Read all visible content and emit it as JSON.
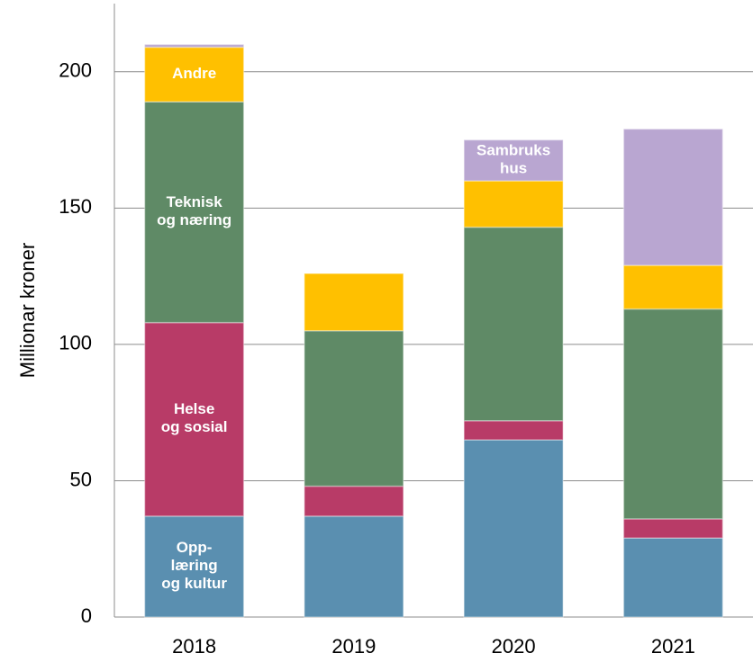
{
  "chart_data": {
    "type": "stacked_bar",
    "y_label": "Millionar kroner",
    "categories": [
      "2018",
      "2019",
      "2020",
      "2021"
    ],
    "series": [
      {
        "name": "Opp-\nlæring\nog kultur",
        "color": "#5a8fb0",
        "values": [
          37,
          37,
          65,
          29
        ]
      },
      {
        "name": "Helse\nog sosial",
        "color": "#b83b67",
        "values": [
          71,
          11,
          7,
          7
        ]
      },
      {
        "name": "Teknisk\nog næring",
        "color": "#5f8a66",
        "values": [
          81,
          57,
          71,
          77
        ]
      },
      {
        "name": "Andre",
        "color": "#ffc000",
        "values": [
          20,
          21,
          17,
          16
        ]
      },
      {
        "name": "Sambruks\nhus",
        "color": "#b9a6d1",
        "values": [
          1,
          0,
          15,
          50
        ]
      }
    ],
    "ylim": [
      0,
      225
    ],
    "yticks": [
      0,
      50,
      100,
      150,
      200
    ],
    "grid": true
  }
}
